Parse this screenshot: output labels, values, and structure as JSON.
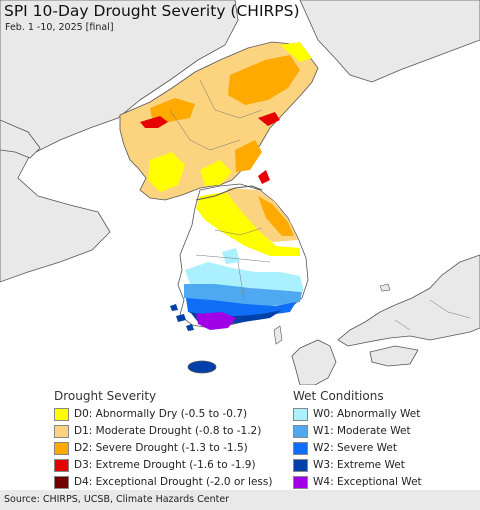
{
  "title": "SPI 10-Day Drought Severity (CHIRPS)",
  "subtitle": "Feb. 1 -10, 2025 [final]",
  "colors": {
    "water": "#ffffff",
    "land_gray": "#e9e9e9",
    "border": "#555555",
    "D0": "#ffff00",
    "D1": "#fcd37f",
    "D2": "#ffaa00",
    "D3": "#e60000",
    "D4": "#730000",
    "W0": "#aaf0ff",
    "W1": "#4ea9f0",
    "W2": "#0f6ef5",
    "W3": "#0040a8",
    "W4": "#a000e6"
  },
  "legend": {
    "drought_title": "Drought Severity",
    "wet_title": "Wet Conditions",
    "drought_items": [
      {
        "label": "D0: Abnormally Dry (-0.5 to -0.7)",
        "color": "#ffff00"
      },
      {
        "label": "D1: Moderate Drought (-0.8 to -1.2)",
        "color": "#fcd37f"
      },
      {
        "label": "D2: Severe Drought (-1.3 to -1.5)",
        "color": "#ffaa00"
      },
      {
        "label": "D3: Extreme Drought (-1.6 to -1.9)",
        "color": "#e60000"
      },
      {
        "label": "D4: Exceptional Drought (-2.0 or less)",
        "color": "#730000"
      }
    ],
    "wet_items": [
      {
        "label": "W0: Abnormally Wet",
        "color": "#aaf0ff"
      },
      {
        "label": "W1: Moderate Wet",
        "color": "#4ea9f0"
      },
      {
        "label": "W2: Severe Wet",
        "color": "#0f6ef5"
      },
      {
        "label": "W3: Extreme Wet",
        "color": "#0040a8"
      },
      {
        "label": "W4: Exceptional Wet",
        "color": "#a000e6"
      }
    ]
  },
  "source": "Source: CHIRPS, UCSB, Climate Hazards Center"
}
